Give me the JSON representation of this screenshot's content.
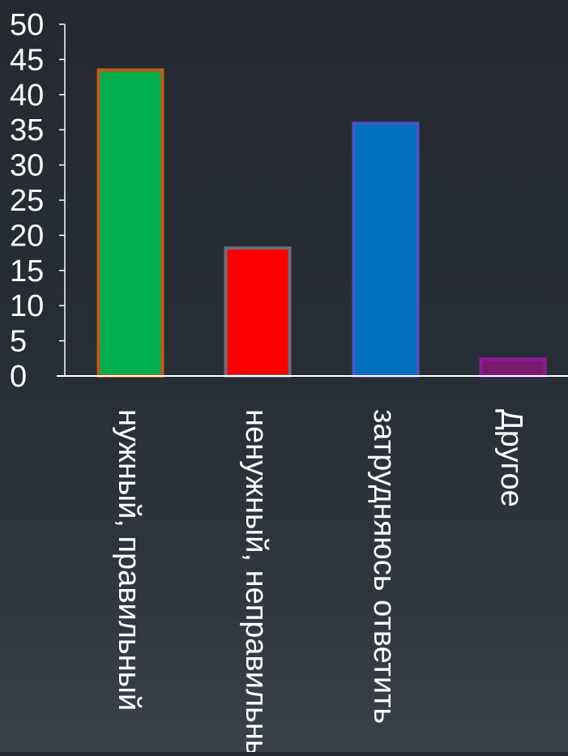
{
  "chart_data": {
    "type": "bar",
    "categories": [
      "нужный, правильный",
      "ненужный, неправильный",
      "затрудняюсь ответить",
      "Другое"
    ],
    "values": [
      43.5,
      18.2,
      35.9,
      2.4
    ],
    "ylim": [
      0,
      50
    ],
    "yticks": [
      "0",
      "5",
      "10",
      "15",
      "20",
      "25",
      "30",
      "35",
      "40",
      "45",
      "50"
    ],
    "bar_fill_colors": [
      "#00b050",
      "#ff0000",
      "#0070c0",
      "#7b1a6a"
    ],
    "bar_edge_colors": [
      "#c55a11",
      "#6b6e7a",
      "#4b55c8",
      "#8b1aa0"
    ],
    "axis_color": "#ffffff",
    "text_color": "#ffffff",
    "grid": false,
    "legend": "none"
  }
}
